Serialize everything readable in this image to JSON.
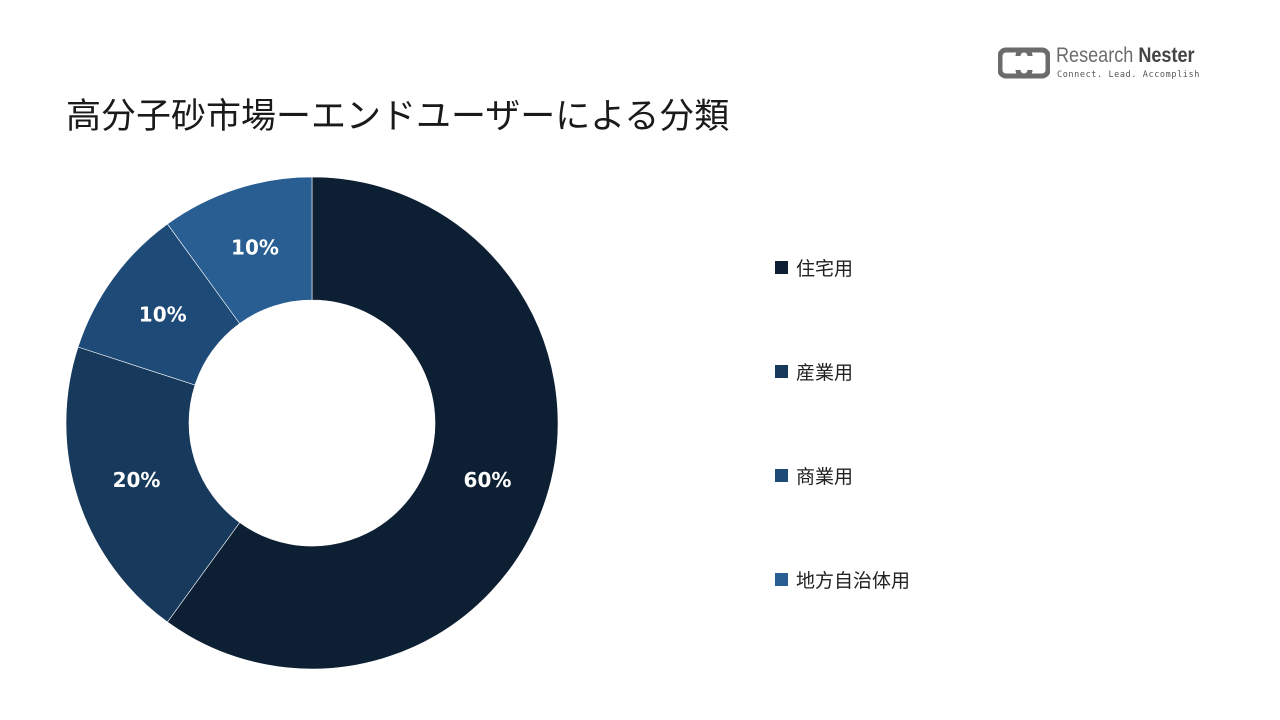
{
  "title": "高分子砂市場ーエンドユーザーによる分類",
  "logo": {
    "icon": "research-nester-logo-mark",
    "name_part1": "Research ",
    "name_part2": "Nester",
    "tagline": "Connect. Lead. Accomplish"
  },
  "colors": {
    "住宅用": "#0d1f33",
    "産業用": "#17395b",
    "商業用": "#1e4a77",
    "地方自治体用": "#285e92"
  },
  "chart_data": {
    "type": "pie",
    "donut": true,
    "categories": [
      "住宅用",
      "産業用",
      "商業用",
      "地方自治体用"
    ],
    "values": [
      60,
      20,
      10,
      10
    ],
    "data_labels": [
      "60%",
      "20%",
      "10%",
      "10%"
    ],
    "legend_position": "right",
    "title": "高分子砂市場ーエンドユーザーによる分類"
  }
}
